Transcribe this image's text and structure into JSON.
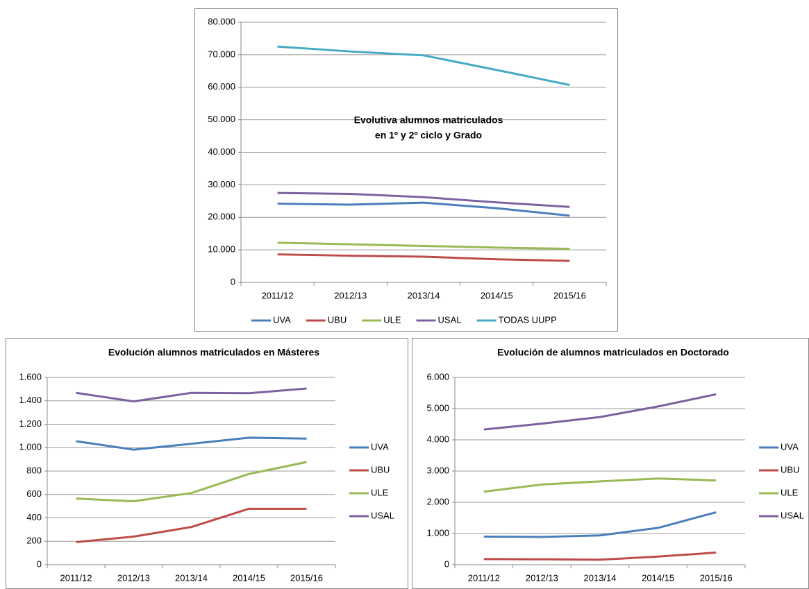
{
  "chart_data": [
    {
      "type": "line",
      "title": [
        "Evolutiva alumnos matriculados",
        "en 1º y 2º ciclo y Grado"
      ],
      "categories": [
        "2011/12",
        "2012/13",
        "2013/14",
        "2014/15",
        "2015/16"
      ],
      "series": [
        {
          "name": "UVA",
          "color": "#4a7ebb",
          "values": [
            24200,
            23900,
            24500,
            22800,
            20500
          ]
        },
        {
          "name": "UBU",
          "color": "#be4b48",
          "values": [
            8600,
            8200,
            7900,
            7100,
            6600
          ]
        },
        {
          "name": "ULE",
          "color": "#98b954",
          "values": [
            12200,
            11700,
            11200,
            10700,
            10300
          ]
        },
        {
          "name": "USAL",
          "color": "#7d60a0",
          "values": [
            27500,
            27200,
            26200,
            24600,
            23200
          ]
        },
        {
          "name": "TODAS UUPP",
          "color": "#46aac5",
          "values": [
            72500,
            71000,
            69800,
            65300,
            60700
          ]
        }
      ],
      "ylim": [
        0,
        80000
      ],
      "yticks": [
        0,
        {
          "value": 10000,
          "label": "10.000"
        },
        {
          "value": 20000,
          "label": "20.000"
        },
        {
          "value": 30000,
          "label": "30.000"
        },
        {
          "value": 40000,
          "label": "40.000"
        },
        {
          "value": 50000,
          "label": "50.000"
        },
        {
          "value": 60000,
          "label": "60.000"
        },
        {
          "value": 70000,
          "label": "70.000"
        },
        {
          "value": 80000,
          "label": "80.000"
        }
      ],
      "grid": true,
      "legend": "bottom"
    },
    {
      "type": "line",
      "title": [
        "Evolución alumnos matriculados  en Másteres"
      ],
      "categories": [
        "2011/12",
        "2012/13",
        "2013/14",
        "2014/15",
        "2015/16"
      ],
      "series": [
        {
          "name": "UVA",
          "color": "#4a7ebb",
          "values": [
            1055,
            983,
            1033,
            1085,
            1077
          ]
        },
        {
          "name": "UBU",
          "color": "#be4b48",
          "values": [
            193,
            240,
            322,
            478,
            478
          ]
        },
        {
          "name": "ULE",
          "color": "#98b954",
          "values": [
            565,
            542,
            612,
            775,
            877
          ]
        },
        {
          "name": "USAL",
          "color": "#7d60a0",
          "values": [
            1468,
            1395,
            1468,
            1465,
            1505
          ]
        }
      ],
      "ylim": [
        0,
        1600
      ],
      "yticks": [
        0,
        200,
        400,
        600,
        800,
        {
          "value": 1000,
          "label": "1.000"
        },
        {
          "value": 1200,
          "label": "1.200"
        },
        {
          "value": 1400,
          "label": "1.400"
        },
        {
          "value": 1600,
          "label": "1.600"
        }
      ],
      "grid": true,
      "legend": "right"
    },
    {
      "type": "line",
      "title": [
        "Evolución de alumnos matriculados  en Doctorado"
      ],
      "categories": [
        "2011/12",
        "2012/13",
        "2013/14",
        "2014/15",
        "2015/16"
      ],
      "series": [
        {
          "name": "UVA",
          "color": "#4a7ebb",
          "values": [
            900,
            890,
            940,
            1180,
            1680
          ]
        },
        {
          "name": "UBU",
          "color": "#be4b48",
          "values": [
            180,
            175,
            160,
            260,
            390
          ]
        },
        {
          "name": "ULE",
          "color": "#98b954",
          "values": [
            2340,
            2570,
            2670,
            2760,
            2700
          ]
        },
        {
          "name": "USAL",
          "color": "#7d60a0",
          "values": [
            4330,
            4520,
            4730,
            5070,
            5460
          ]
        }
      ],
      "ylim": [
        0,
        6000
      ],
      "yticks": [
        0,
        {
          "value": 1000,
          "label": "1.000"
        },
        {
          "value": 2000,
          "label": "2.000"
        },
        {
          "value": 3000,
          "label": "3.000"
        },
        {
          "value": 4000,
          "label": "4.000"
        },
        {
          "value": 5000,
          "label": "5.000"
        },
        {
          "value": 6000,
          "label": "6.000"
        }
      ],
      "grid": true,
      "legend": "right"
    }
  ]
}
